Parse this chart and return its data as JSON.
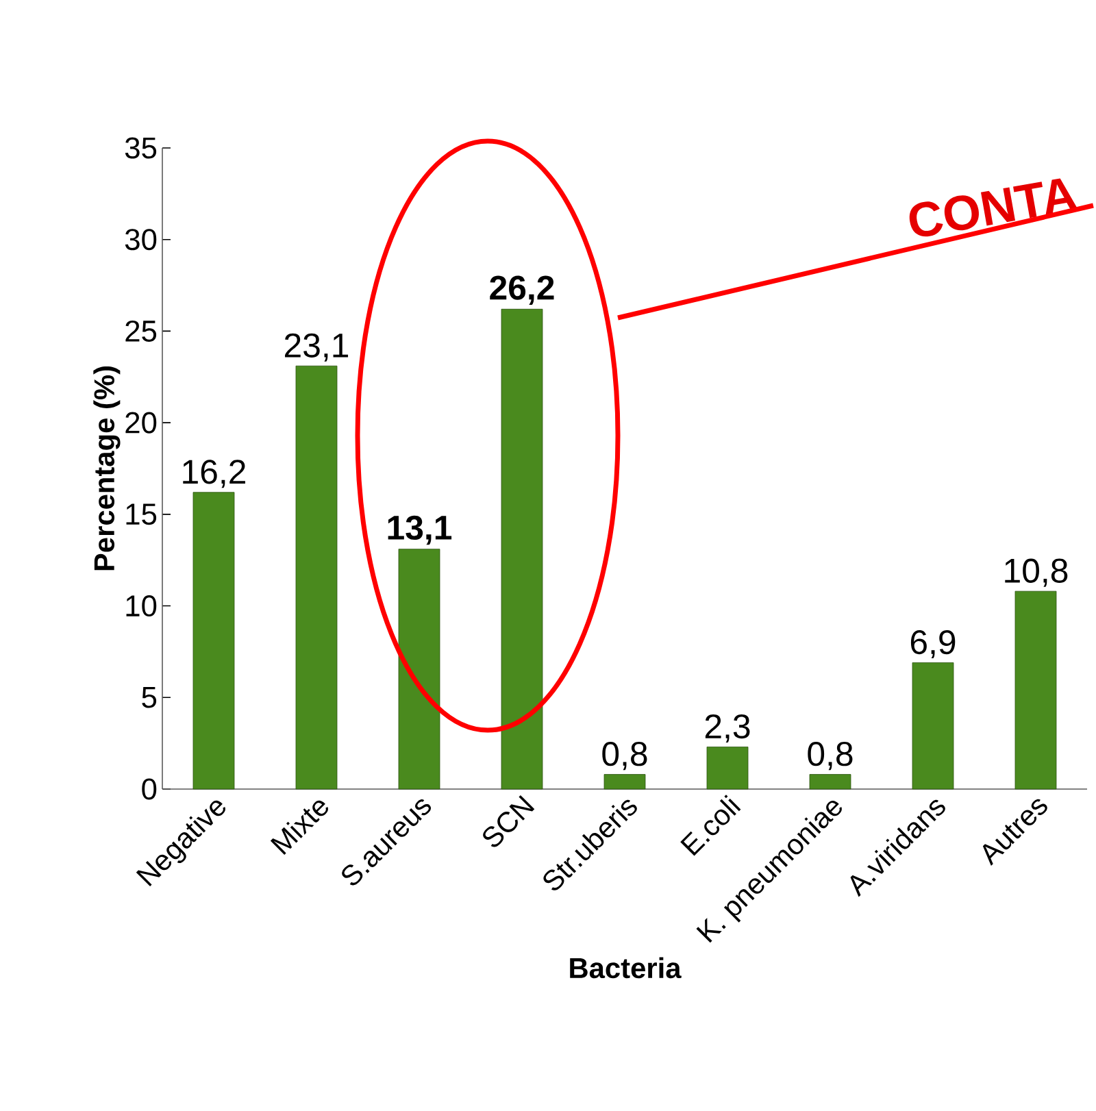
{
  "chart_data": {
    "type": "bar",
    "xlabel": "Bacteria",
    "ylabel": "Percentage (%)",
    "categories": [
      "Negative",
      "Mixte",
      "S.aureus",
      "SCN",
      "Str.uberis",
      "E.coli",
      "K. pneumoniae",
      "A.viridans",
      "Autres"
    ],
    "values": [
      16.2,
      23.1,
      13.1,
      26.2,
      0.8,
      2.3,
      0.8,
      6.9,
      10.8
    ],
    "value_labels": [
      "16,2",
      "23,1",
      "**13,1**",
      "**26,2**",
      "0,8",
      "2,3",
      "0,8",
      "6,9",
      "10,8"
    ],
    "color": "#4a8a1e",
    "ylim": [
      0,
      35
    ],
    "yticks": [
      0,
      5,
      10,
      15,
      20,
      25,
      30,
      35
    ],
    "annotations": [
      "CONTA"
    ],
    "grid": false
  }
}
